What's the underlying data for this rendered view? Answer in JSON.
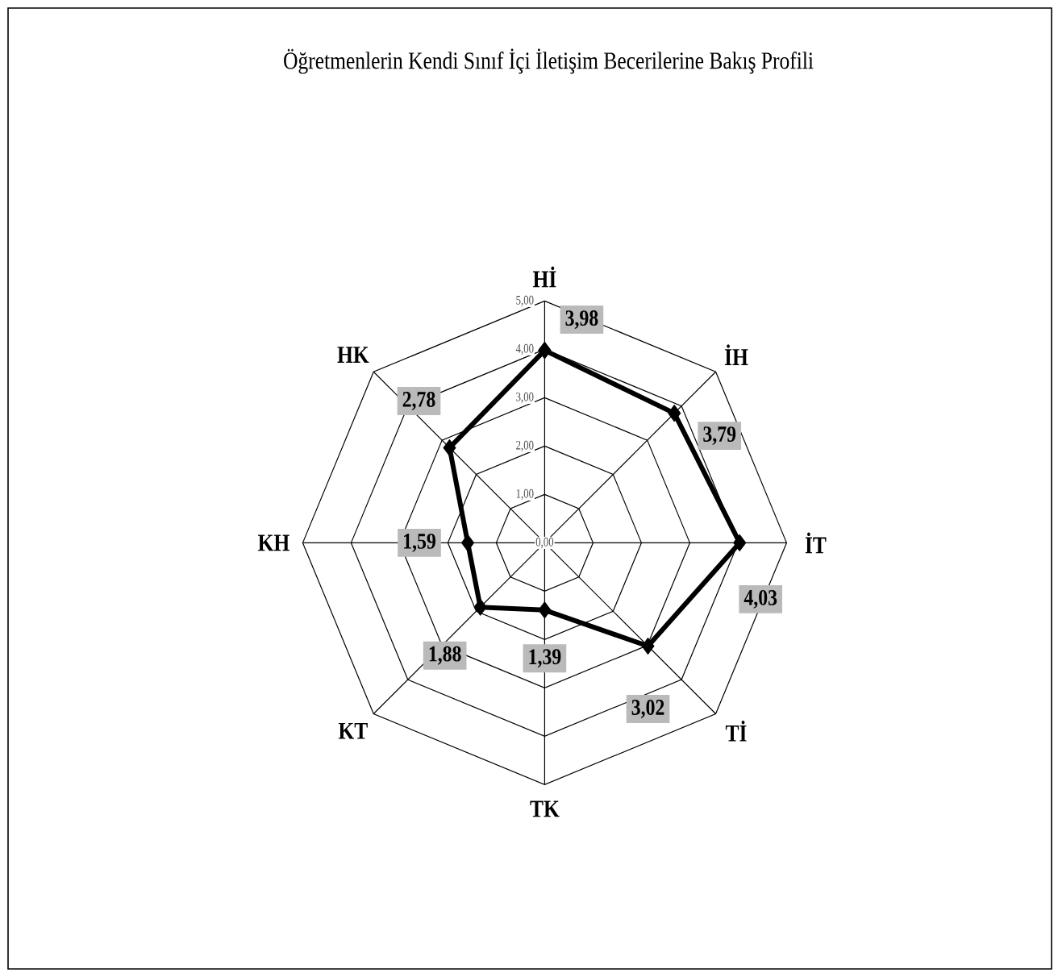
{
  "chart_data": {
    "type": "radar",
    "title": "Öğretmenlerin Kendi Sınıf İçi İletişim Becerilerine Bakış Profili",
    "categories": [
      "Hİ",
      "İH",
      "İT",
      "Tİ",
      "TK",
      "KT",
      "KH",
      "HK"
    ],
    "series": [
      {
        "color": "#000000",
        "values": [
          3.98,
          3.79,
          4.03,
          3.02,
          1.39,
          1.88,
          1.59,
          2.78
        ],
        "value_labels": [
          "3,98",
          "3,79",
          "4,03",
          "3,02",
          "1,39",
          "1,88",
          "1,59",
          "2,78"
        ]
      }
    ],
    "ylim": [
      0,
      5
    ],
    "yticks": [
      {
        "value": 0,
        "label": "0,00"
      },
      {
        "value": 1,
        "label": "1,00"
      },
      {
        "value": 2,
        "label": "2,00"
      },
      {
        "value": 3,
        "label": "3,00"
      },
      {
        "value": 4,
        "label": "4,00"
      },
      {
        "value": 5,
        "label": "5,00"
      }
    ],
    "grid": true,
    "marker": "diamond",
    "line_style": "solid"
  }
}
